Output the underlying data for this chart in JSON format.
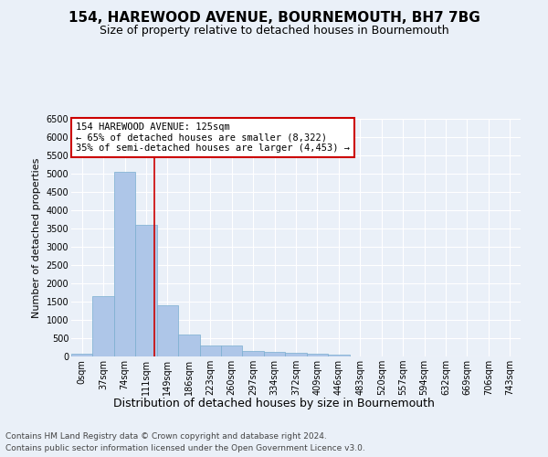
{
  "title": "154, HAREWOOD AVENUE, BOURNEMOUTH, BH7 7BG",
  "subtitle": "Size of property relative to detached houses in Bournemouth",
  "xlabel": "Distribution of detached houses by size in Bournemouth",
  "ylabel": "Number of detached properties",
  "bin_labels": [
    "0sqm",
    "37sqm",
    "74sqm",
    "111sqm",
    "149sqm",
    "186sqm",
    "223sqm",
    "260sqm",
    "297sqm",
    "334sqm",
    "372sqm",
    "409sqm",
    "446sqm",
    "483sqm",
    "520sqm",
    "557sqm",
    "594sqm",
    "632sqm",
    "669sqm",
    "706sqm",
    "743sqm"
  ],
  "bar_values": [
    70,
    1650,
    5050,
    3600,
    1400,
    600,
    300,
    295,
    150,
    125,
    100,
    70,
    40,
    5,
    3,
    2,
    1,
    0,
    0,
    0,
    0
  ],
  "bar_color": "#aec6e8",
  "bar_edgecolor": "#7aaed0",
  "vline_x": 3.378,
  "vline_color": "#cc0000",
  "annotation_text": "154 HAREWOOD AVENUE: 125sqm\n← 65% of detached houses are smaller (8,322)\n35% of semi-detached houses are larger (4,453) →",
  "annotation_box_edgecolor": "#cc0000",
  "annotation_box_facecolor": "#ffffff",
  "ylim": [
    0,
    6500
  ],
  "yticks": [
    0,
    500,
    1000,
    1500,
    2000,
    2500,
    3000,
    3500,
    4000,
    4500,
    5000,
    5500,
    6000,
    6500
  ],
  "bg_color": "#eaf0f8",
  "axes_bg_color": "#eaf0f8",
  "grid_color": "#ffffff",
  "footer_line1": "Contains HM Land Registry data © Crown copyright and database right 2024.",
  "footer_line2": "Contains public sector information licensed under the Open Government Licence v3.0.",
  "title_fontsize": 11,
  "subtitle_fontsize": 9,
  "xlabel_fontsize": 9,
  "ylabel_fontsize": 8,
  "tick_fontsize": 7,
  "annotation_fontsize": 7.5,
  "footer_fontsize": 6.5
}
